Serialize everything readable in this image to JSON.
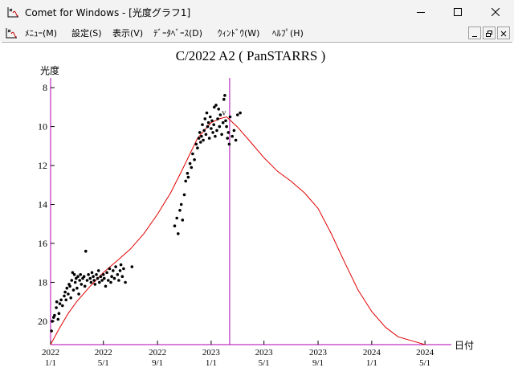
{
  "window": {
    "title": "Comet for Windows - [光度グラフ1]"
  },
  "menu": [
    {
      "label": "ﾒﾆｭｰ(M)"
    },
    {
      "label": "設定(S)"
    },
    {
      "label": "表示(V)"
    },
    {
      "label": "ﾃﾞｰﾀﾍﾞｰｽ(D)"
    },
    {
      "label": "ｳｨﾝﾄﾞｳ(W)"
    },
    {
      "label": "ﾍﾙﾌﾟ(H)"
    }
  ],
  "icons": {
    "app": "graph-icon",
    "minimize": "minimize-icon",
    "maximize": "maximize-icon",
    "close": "close-icon",
    "mdi_minimize": "mdi-minimize-icon",
    "mdi_restore": "mdi-restore-icon",
    "mdi_close": "mdi-close-icon"
  },
  "chart_data": {
    "type": "scatter",
    "title": "C/2022 A2 ( PanSTARRS )",
    "ylabel": "光度",
    "xlabel": "日付",
    "y_inverted": true,
    "ylim": [
      21.2,
      7.5
    ],
    "xlim": [
      "2022-01-01",
      "2024-06-30"
    ],
    "y_ticks": [
      8,
      10,
      12,
      14,
      16,
      18,
      20
    ],
    "x_ticks": [
      {
        "year": "2022",
        "date": "1/1",
        "value": "2022-01-01"
      },
      {
        "year": "2022",
        "date": "5/1",
        "value": "2022-05-01"
      },
      {
        "year": "2022",
        "date": "9/1",
        "value": "2022-09-01"
      },
      {
        "year": "2023",
        "date": "1/1",
        "value": "2023-01-01"
      },
      {
        "year": "2023",
        "date": "5/1",
        "value": "2023-05-01"
      },
      {
        "year": "2023",
        "date": "9/1",
        "value": "2023-09-01"
      },
      {
        "year": "2024",
        "date": "1/1",
        "value": "2024-01-01"
      },
      {
        "year": "2024",
        "date": "5/1",
        "value": "2024-05-01"
      }
    ],
    "current_date": "2023-02-12",
    "marker_label": "v",
    "grid": false,
    "colors": {
      "curve": "#e00000",
      "points": "#000000",
      "current_line": "#b000b0",
      "axis": "#000000",
      "axis_box": "#b000b0"
    },
    "series": [
      {
        "type": "line",
        "points": [
          [
            "2022-01-01",
            21.2
          ],
          [
            "2022-01-20",
            20.4
          ],
          [
            "2022-02-10",
            19.6
          ],
          [
            "2022-03-01",
            19.0
          ],
          [
            "2022-04-01",
            18.2
          ],
          [
            "2022-05-01",
            17.5
          ],
          [
            "2022-06-01",
            16.9
          ],
          [
            "2022-07-01",
            16.3
          ],
          [
            "2022-08-01",
            15.5
          ],
          [
            "2022-09-01",
            14.5
          ],
          [
            "2022-10-01",
            13.4
          ],
          [
            "2022-11-01",
            12.0
          ],
          [
            "2022-12-01",
            10.6
          ],
          [
            "2023-01-01",
            9.8
          ],
          [
            "2023-01-20",
            9.6
          ],
          [
            "2023-02-05",
            9.5
          ],
          [
            "2023-03-01",
            10.0
          ],
          [
            "2023-04-01",
            10.8
          ],
          [
            "2023-05-01",
            11.6
          ],
          [
            "2023-06-01",
            12.3
          ],
          [
            "2023-07-01",
            12.8
          ],
          [
            "2023-08-01",
            13.4
          ],
          [
            "2023-09-01",
            14.2
          ],
          [
            "2023-10-01",
            15.5
          ],
          [
            "2023-11-01",
            17.0
          ],
          [
            "2023-12-01",
            18.4
          ],
          [
            "2024-01-01",
            19.5
          ],
          [
            "2024-02-01",
            20.3
          ],
          [
            "2024-03-01",
            20.8
          ],
          [
            "2024-04-01",
            21.0
          ],
          [
            "2024-05-01",
            21.2
          ]
        ]
      },
      {
        "type": "scatter",
        "points": [
          [
            "2022-01-05",
            20.0
          ],
          [
            "2022-01-03",
            20.5
          ],
          [
            "2022-01-08",
            19.8
          ],
          [
            "2022-01-10",
            19.7
          ],
          [
            "2022-01-14",
            19.3
          ],
          [
            "2022-01-15",
            19.0
          ],
          [
            "2022-01-18",
            19.9
          ],
          [
            "2022-01-20",
            19.6
          ],
          [
            "2022-01-22",
            19.1
          ],
          [
            "2022-01-25",
            18.9
          ],
          [
            "2022-01-28",
            19.2
          ],
          [
            "2022-02-01",
            18.7
          ],
          [
            "2022-02-03",
            18.5
          ],
          [
            "2022-02-05",
            18.9
          ],
          [
            "2022-02-07",
            18.3
          ],
          [
            "2022-02-10",
            18.6
          ],
          [
            "2022-02-12",
            18.1
          ],
          [
            "2022-02-14",
            18.2
          ],
          [
            "2022-02-16",
            18.8
          ],
          [
            "2022-02-18",
            17.9
          ],
          [
            "2022-02-20",
            17.5
          ],
          [
            "2022-02-22",
            18.4
          ],
          [
            "2022-02-24",
            17.6
          ],
          [
            "2022-02-26",
            18.0
          ],
          [
            "2022-02-28",
            17.8
          ],
          [
            "2022-03-02",
            18.3
          ],
          [
            "2022-03-04",
            17.7
          ],
          [
            "2022-03-06",
            18.6
          ],
          [
            "2022-03-08",
            17.9
          ],
          [
            "2022-03-10",
            17.6
          ],
          [
            "2022-03-12",
            18.1
          ],
          [
            "2022-03-15",
            17.8
          ],
          [
            "2022-03-18",
            17.7
          ],
          [
            "2022-03-20",
            18.2
          ],
          [
            "2022-03-22",
            16.4
          ],
          [
            "2022-03-25",
            17.9
          ],
          [
            "2022-03-28",
            17.6
          ],
          [
            "2022-04-01",
            17.8
          ],
          [
            "2022-04-03",
            18.0
          ],
          [
            "2022-04-05",
            17.5
          ],
          [
            "2022-04-08",
            17.7
          ],
          [
            "2022-04-10",
            17.9
          ],
          [
            "2022-04-12",
            18.1
          ],
          [
            "2022-04-15",
            17.6
          ],
          [
            "2022-04-18",
            17.8
          ],
          [
            "2022-04-20",
            17.4
          ],
          [
            "2022-04-22",
            18.0
          ],
          [
            "2022-04-25",
            17.7
          ],
          [
            "2022-04-28",
            17.9
          ],
          [
            "2022-05-01",
            17.6
          ],
          [
            "2022-05-03",
            17.8
          ],
          [
            "2022-05-06",
            18.2
          ],
          [
            "2022-05-09",
            17.5
          ],
          [
            "2022-05-12",
            17.9
          ],
          [
            "2022-05-15",
            17.3
          ],
          [
            "2022-05-18",
            18.0
          ],
          [
            "2022-05-20",
            17.7
          ],
          [
            "2022-05-23",
            17.4
          ],
          [
            "2022-05-26",
            17.8
          ],
          [
            "2022-05-29",
            17.2
          ],
          [
            "2022-06-02",
            17.6
          ],
          [
            "2022-06-05",
            17.9
          ],
          [
            "2022-06-08",
            17.4
          ],
          [
            "2022-06-10",
            17.1
          ],
          [
            "2022-06-13",
            17.7
          ],
          [
            "2022-06-16",
            17.3
          ],
          [
            "2022-06-20",
            18.0
          ],
          [
            "2022-07-05",
            17.2
          ],
          [
            "2022-10-10",
            15.1
          ],
          [
            "2022-10-15",
            14.7
          ],
          [
            "2022-10-18",
            15.5
          ],
          [
            "2022-10-22",
            14.3
          ],
          [
            "2022-10-25",
            14.0
          ],
          [
            "2022-10-28",
            14.8
          ],
          [
            "2022-11-01",
            13.5
          ],
          [
            "2022-11-04",
            12.8
          ],
          [
            "2022-11-08",
            12.4
          ],
          [
            "2022-11-10",
            12.6
          ],
          [
            "2022-11-14",
            11.9
          ],
          [
            "2022-11-17",
            12.1
          ],
          [
            "2022-11-20",
            11.4
          ],
          [
            "2022-11-24",
            11.7
          ],
          [
            "2022-11-28",
            10.9
          ],
          [
            "2022-12-01",
            11.1
          ],
          [
            "2022-12-04",
            10.6
          ],
          [
            "2022-12-06",
            10.3
          ],
          [
            "2022-12-08",
            10.8
          ],
          [
            "2022-12-10",
            10.5
          ],
          [
            "2022-12-12",
            9.9
          ],
          [
            "2022-12-14",
            10.7
          ],
          [
            "2022-12-16",
            10.2
          ],
          [
            "2022-12-18",
            9.6
          ],
          [
            "2022-12-20",
            10.4
          ],
          [
            "2022-12-22",
            9.3
          ],
          [
            "2022-12-24",
            10.0
          ],
          [
            "2022-12-26",
            9.8
          ],
          [
            "2022-12-28",
            10.6
          ],
          [
            "2022-12-30",
            9.5
          ],
          [
            "2023-01-01",
            10.1
          ],
          [
            "2023-01-03",
            9.7
          ],
          [
            "2023-01-05",
            10.3
          ],
          [
            "2023-01-07",
            9.9
          ],
          [
            "2023-01-08",
            9.0
          ],
          [
            "2023-01-10",
            10.5
          ],
          [
            "2023-01-12",
            8.9
          ],
          [
            "2023-01-14",
            10.2
          ],
          [
            "2023-01-16",
            9.6
          ],
          [
            "2023-01-18",
            9.1
          ],
          [
            "2023-01-20",
            10.0
          ],
          [
            "2023-01-22",
            9.4
          ],
          [
            "2023-01-25",
            10.4
          ],
          [
            "2023-01-28",
            9.8
          ],
          [
            "2023-01-30",
            8.6
          ],
          [
            "2023-02-01",
            8.4
          ],
          [
            "2023-02-03",
            9.7
          ],
          [
            "2023-02-05",
            10.0
          ],
          [
            "2023-02-07",
            10.6
          ],
          [
            "2023-02-09",
            10.3
          ],
          [
            "2023-02-11",
            10.9
          ],
          [
            "2023-02-13",
            9.5
          ],
          [
            "2023-02-18",
            10.5
          ],
          [
            "2023-02-22",
            10.2
          ],
          [
            "2023-02-26",
            10.7
          ],
          [
            "2023-03-02",
            9.4
          ],
          [
            "2023-03-08",
            9.3
          ]
        ]
      }
    ]
  }
}
